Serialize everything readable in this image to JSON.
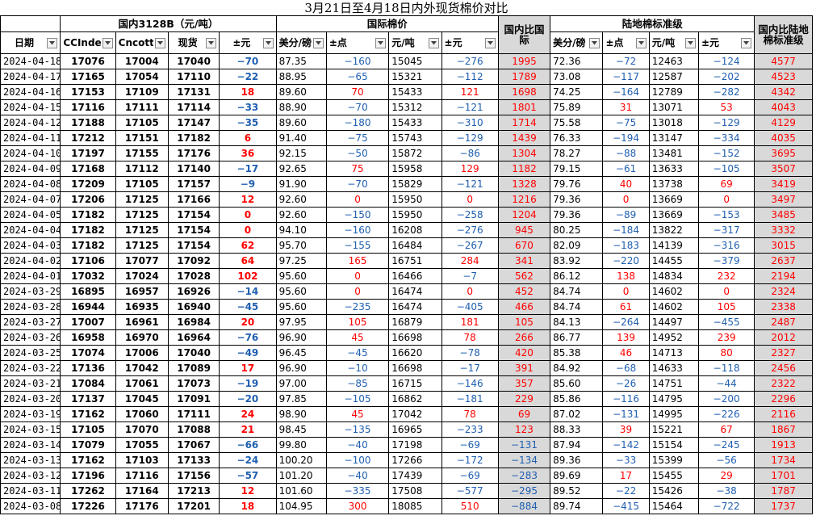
{
  "title": "3月21日至4月18日内外现货棉价对比",
  "groups": {
    "domestic": "国内3128B（元/吨）",
    "international": "国际棉价",
    "ratio_intl": "国内比国际",
    "landbased": "陆地棉标准级",
    "ratio_land": "国内比陆地棉标准级"
  },
  "columns": [
    "日期",
    "CCIndex",
    "Cncotton",
    "现货",
    "±元",
    "美分/磅",
    "±点",
    "元/吨",
    "±元",
    "国内比国际",
    "美分/磅",
    "±点",
    "元/吨",
    "±元",
    "国内比陆地棉标准级"
  ],
  "colors": {
    "up": "#ff0000",
    "down": "#1f5fb0",
    "grey_cell": "#d9d9d9"
  },
  "rows": [
    {
      "date": "2024-04-18",
      "cci": "17076",
      "cnc": "17004",
      "spot": "17040",
      "d1": "−70",
      "usc": "87.35",
      "pt": "−160",
      "cny": "15045",
      "d2": "−276",
      "r1": "1995",
      "usc2": "72.36",
      "pt2": "−72",
      "cny2": "12463",
      "d3": "−124",
      "r2": "4577"
    },
    {
      "date": "2024-04-17",
      "cci": "17165",
      "cnc": "17054",
      "spot": "17110",
      "d1": "−22",
      "usc": "88.95",
      "pt": "−65",
      "cny": "15321",
      "d2": "−112",
      "r1": "1789",
      "usc2": "73.08",
      "pt2": "−117",
      "cny2": "12587",
      "d3": "−202",
      "r2": "4523"
    },
    {
      "date": "2024-04-16",
      "cci": "17153",
      "cnc": "17109",
      "spot": "17131",
      "d1": "18",
      "usc": "89.60",
      "pt": "70",
      "cny": "15433",
      "d2": "121",
      "r1": "1698",
      "usc2": "74.25",
      "pt2": "−164",
      "cny2": "12789",
      "d3": "−282",
      "r2": "4342"
    },
    {
      "date": "2024-04-15",
      "cci": "17116",
      "cnc": "17111",
      "spot": "17114",
      "d1": "−33",
      "usc": "88.90",
      "pt": "−70",
      "cny": "15312",
      "d2": "−121",
      "r1": "1801",
      "usc2": "75.89",
      "pt2": "31",
      "cny2": "13071",
      "d3": "53",
      "r2": "4043"
    },
    {
      "date": "2024-04-12",
      "cci": "17188",
      "cnc": "17105",
      "spot": "17147",
      "d1": "−35",
      "usc": "89.60",
      "pt": "−180",
      "cny": "15433",
      "d2": "−310",
      "r1": "1714",
      "usc2": "75.58",
      "pt2": "−75",
      "cny2": "13018",
      "d3": "−129",
      "r2": "4129"
    },
    {
      "date": "2024-04-11",
      "cci": "17212",
      "cnc": "17151",
      "spot": "17182",
      "d1": "6",
      "usc": "91.40",
      "pt": "−75",
      "cny": "15743",
      "d2": "−129",
      "r1": "1439",
      "usc2": "76.33",
      "pt2": "−194",
      "cny2": "13147",
      "d3": "−334",
      "r2": "4035"
    },
    {
      "date": "2024-04-10",
      "cci": "17197",
      "cnc": "17155",
      "spot": "17176",
      "d1": "36",
      "usc": "92.15",
      "pt": "−50",
      "cny": "15872",
      "d2": "−86",
      "r1": "1304",
      "usc2": "78.27",
      "pt2": "−88",
      "cny2": "13481",
      "d3": "−152",
      "r2": "3695"
    },
    {
      "date": "2024-04-09",
      "cci": "17168",
      "cnc": "17112",
      "spot": "17140",
      "d1": "−17",
      "usc": "92.65",
      "pt": "75",
      "cny": "15958",
      "d2": "129",
      "r1": "1182",
      "usc2": "79.15",
      "pt2": "−61",
      "cny2": "13633",
      "d3": "−105",
      "r2": "3507"
    },
    {
      "date": "2024-04-08",
      "cci": "17209",
      "cnc": "17105",
      "spot": "17157",
      "d1": "−9",
      "usc": "91.90",
      "pt": "−70",
      "cny": "15829",
      "d2": "−121",
      "r1": "1328",
      "usc2": "79.76",
      "pt2": "40",
      "cny2": "13738",
      "d3": "69",
      "r2": "3419"
    },
    {
      "date": "2024-04-07",
      "cci": "17206",
      "cnc": "17125",
      "spot": "17166",
      "d1": "12",
      "usc": "92.60",
      "pt": "0",
      "cny": "15950",
      "d2": "0",
      "r1": "1216",
      "usc2": "79.36",
      "pt2": "0",
      "cny2": "13669",
      "d3": "0",
      "r2": "3497"
    },
    {
      "date": "2024-04-05",
      "cci": "17182",
      "cnc": "17125",
      "spot": "17154",
      "d1": "0",
      "usc": "92.60",
      "pt": "−150",
      "cny": "15950",
      "d2": "−258",
      "r1": "1204",
      "usc2": "79.36",
      "pt2": "−89",
      "cny2": "13669",
      "d3": "−153",
      "r2": "3485"
    },
    {
      "date": "2024-04-04",
      "cci": "17182",
      "cnc": "17125",
      "spot": "17154",
      "d1": "0",
      "usc": "94.10",
      "pt": "−160",
      "cny": "16208",
      "d2": "−276",
      "r1": "945",
      "usc2": "80.25",
      "pt2": "−184",
      "cny2": "13822",
      "d3": "−317",
      "r2": "3332"
    },
    {
      "date": "2024-04-03",
      "cci": "17182",
      "cnc": "17125",
      "spot": "17154",
      "d1": "62",
      "usc": "95.70",
      "pt": "−155",
      "cny": "16484",
      "d2": "−267",
      "r1": "670",
      "usc2": "82.09",
      "pt2": "−183",
      "cny2": "14139",
      "d3": "−316",
      "r2": "3015"
    },
    {
      "date": "2024-04-02",
      "cci": "17106",
      "cnc": "17077",
      "spot": "17092",
      "d1": "64",
      "usc": "97.25",
      "pt": "165",
      "cny": "16751",
      "d2": "284",
      "r1": "341",
      "usc2": "83.92",
      "pt2": "−220",
      "cny2": "14455",
      "d3": "−379",
      "r2": "2637"
    },
    {
      "date": "2024-04-01",
      "cci": "17032",
      "cnc": "17024",
      "spot": "17028",
      "d1": "102",
      "usc": "95.60",
      "pt": "0",
      "cny": "16466",
      "d2": "−7",
      "r1": "562",
      "usc2": "86.12",
      "pt2": "138",
      "cny2": "14834",
      "d3": "232",
      "r2": "2194"
    },
    {
      "date": "2024-03-29",
      "cci": "16895",
      "cnc": "16957",
      "spot": "16926",
      "d1": "−14",
      "usc": "95.60",
      "pt": "0",
      "cny": "16474",
      "d2": "0",
      "r1": "452",
      "usc2": "84.74",
      "pt2": "0",
      "cny2": "14602",
      "d3": "0",
      "r2": "2324"
    },
    {
      "date": "2024-03-28",
      "cci": "16944",
      "cnc": "16935",
      "spot": "16940",
      "d1": "−45",
      "usc": "95.60",
      "pt": "−235",
      "cny": "16474",
      "d2": "−405",
      "r1": "466",
      "usc2": "84.74",
      "pt2": "61",
      "cny2": "14602",
      "d3": "105",
      "r2": "2338"
    },
    {
      "date": "2024-03-27",
      "cci": "17007",
      "cnc": "16961",
      "spot": "16984",
      "d1": "20",
      "usc": "97.95",
      "pt": "105",
      "cny": "16879",
      "d2": "181",
      "r1": "105",
      "usc2": "84.13",
      "pt2": "−264",
      "cny2": "14497",
      "d3": "−455",
      "r2": "2487"
    },
    {
      "date": "2024-03-26",
      "cci": "16958",
      "cnc": "16970",
      "spot": "16964",
      "d1": "−76",
      "usc": "96.90",
      "pt": "45",
      "cny": "16698",
      "d2": "78",
      "r1": "266",
      "usc2": "86.77",
      "pt2": "139",
      "cny2": "14952",
      "d3": "239",
      "r2": "2012"
    },
    {
      "date": "2024-03-25",
      "cci": "17074",
      "cnc": "17006",
      "spot": "17040",
      "d1": "−49",
      "usc": "96.45",
      "pt": "−45",
      "cny": "16620",
      "d2": "−78",
      "r1": "420",
      "usc2": "85.38",
      "pt2": "46",
      "cny2": "14713",
      "d3": "80",
      "r2": "2327"
    },
    {
      "date": "2024-03-22",
      "cci": "17136",
      "cnc": "17042",
      "spot": "17089",
      "d1": "17",
      "usc": "96.90",
      "pt": "−10",
      "cny": "16698",
      "d2": "−17",
      "r1": "391",
      "usc2": "84.92",
      "pt2": "−68",
      "cny2": "14633",
      "d3": "−118",
      "r2": "2456"
    },
    {
      "date": "2024-03-21",
      "cci": "17084",
      "cnc": "17061",
      "spot": "17073",
      "d1": "−19",
      "usc": "97.00",
      "pt": "−85",
      "cny": "16715",
      "d2": "−146",
      "r1": "357",
      "usc2": "85.60",
      "pt2": "−26",
      "cny2": "14751",
      "d3": "−44",
      "r2": "2322"
    },
    {
      "date": "2024-03-20",
      "cci": "17137",
      "cnc": "17045",
      "spot": "17091",
      "d1": "−20",
      "usc": "97.85",
      "pt": "−105",
      "cny": "16862",
      "d2": "−181",
      "r1": "229",
      "usc2": "85.86",
      "pt2": "−116",
      "cny2": "14795",
      "d3": "−200",
      "r2": "2296"
    },
    {
      "date": "2024-03-19",
      "cci": "17162",
      "cnc": "17060",
      "spot": "17111",
      "d1": "24",
      "usc": "98.90",
      "pt": "45",
      "cny": "17042",
      "d2": "78",
      "r1": "69",
      "usc2": "87.02",
      "pt2": "−131",
      "cny2": "14995",
      "d3": "−226",
      "r2": "2116"
    },
    {
      "date": "2024-03-15",
      "cci": "17105",
      "cnc": "17070",
      "spot": "17088",
      "d1": "21",
      "usc": "98.45",
      "pt": "−135",
      "cny": "16965",
      "d2": "−233",
      "r1": "123",
      "usc2": "88.33",
      "pt2": "39",
      "cny2": "15221",
      "d3": "67",
      "r2": "1867"
    },
    {
      "date": "2024-03-14",
      "cci": "17079",
      "cnc": "17055",
      "spot": "17067",
      "d1": "−66",
      "usc": "99.80",
      "pt": "−40",
      "cny": "17198",
      "d2": "−69",
      "r1": "−131",
      "usc2": "87.94",
      "pt2": "−142",
      "cny2": "15154",
      "d3": "−245",
      "r2": "1913"
    },
    {
      "date": "2024-03-13",
      "cci": "17162",
      "cnc": "17103",
      "spot": "17133",
      "d1": "−24",
      "usc": "100.20",
      "pt": "−100",
      "cny": "17266",
      "d2": "−172",
      "r1": "−134",
      "usc2": "89.36",
      "pt2": "−33",
      "cny2": "15399",
      "d3": "−56",
      "r2": "1734"
    },
    {
      "date": "2024-03-12",
      "cci": "17196",
      "cnc": "17116",
      "spot": "17156",
      "d1": "−57",
      "usc": "101.20",
      "pt": "−40",
      "cny": "17439",
      "d2": "−69",
      "r1": "−283",
      "usc2": "89.69",
      "pt2": "17",
      "cny2": "15455",
      "d3": "29",
      "r2": "1701"
    },
    {
      "date": "2024-03-11",
      "cci": "17262",
      "cnc": "17164",
      "spot": "17213",
      "d1": "12",
      "usc": "101.60",
      "pt": "−335",
      "cny": "17508",
      "d2": "−577",
      "r1": "−295",
      "usc2": "89.52",
      "pt2": "−22",
      "cny2": "15426",
      "d3": "−38",
      "r2": "1787"
    },
    {
      "date": "2024-03-08",
      "cci": "17226",
      "cnc": "17176",
      "spot": "17201",
      "d1": "18",
      "usc": "104.95",
      "pt": "300",
      "cny": "18085",
      "d2": "510",
      "r1": "−884",
      "usc2": "89.74",
      "pt2": "−415",
      "cny2": "15464",
      "d3": "−722",
      "r2": "1737"
    }
  ]
}
